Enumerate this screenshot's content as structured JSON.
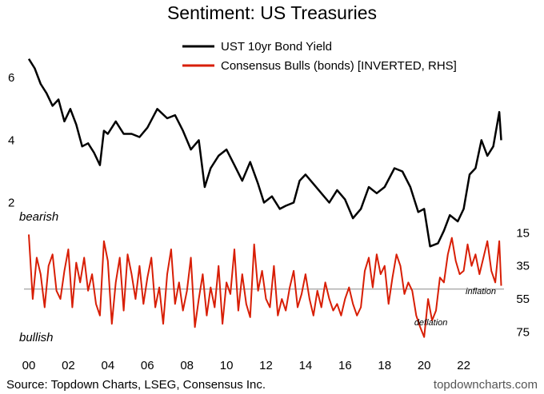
{
  "chart_data": {
    "type": "line",
    "title": "Sentiment: US Treasuries",
    "x_range": [
      2000,
      2024
    ],
    "x_ticks": [
      {
        "value": 2000,
        "label": "00"
      },
      {
        "value": 2002,
        "label": "02"
      },
      {
        "value": 2004,
        "label": "04"
      },
      {
        "value": 2006,
        "label": "06"
      },
      {
        "value": 2008,
        "label": "08"
      },
      {
        "value": 2010,
        "label": "10"
      },
      {
        "value": 2012,
        "label": "12"
      },
      {
        "value": 2014,
        "label": "14"
      },
      {
        "value": 2016,
        "label": "16"
      },
      {
        "value": 2018,
        "label": "18"
      },
      {
        "value": 2020,
        "label": "20"
      },
      {
        "value": 2022,
        "label": "22"
      }
    ],
    "left_axis": {
      "ticks": [
        {
          "value": 2,
          "label": "2"
        },
        {
          "value": 4,
          "label": "4"
        },
        {
          "value": 6,
          "label": "6"
        }
      ],
      "range": [
        1.4,
        6.9
      ]
    },
    "right_axis": {
      "ticks": [
        {
          "value": 15,
          "label": "15"
        },
        {
          "value": 35,
          "label": "35"
        },
        {
          "value": 55,
          "label": "55"
        },
        {
          "value": 75,
          "label": "75"
        }
      ],
      "range": [
        10,
        82
      ],
      "inverted": true
    },
    "reference_line": 49,
    "series": [
      {
        "name": "UST 10yr Bond Yield",
        "color": "#000000",
        "axis": "left",
        "x": [
          2000.0,
          2000.3,
          2000.6,
          2000.9,
          2001.2,
          2001.5,
          2001.8,
          2002.1,
          2002.4,
          2002.7,
          2003.0,
          2003.3,
          2003.6,
          2003.8,
          2004.0,
          2004.4,
          2004.8,
          2005.2,
          2005.6,
          2006.0,
          2006.5,
          2007.0,
          2007.4,
          2007.8,
          2008.2,
          2008.6,
          2008.9,
          2009.2,
          2009.6,
          2010.0,
          2010.4,
          2010.8,
          2011.2,
          2011.6,
          2011.9,
          2012.3,
          2012.7,
          2013.0,
          2013.4,
          2013.7,
          2014.0,
          2014.4,
          2014.8,
          2015.2,
          2015.6,
          2016.0,
          2016.4,
          2016.8,
          2017.2,
          2017.6,
          2018.0,
          2018.5,
          2018.9,
          2019.3,
          2019.7,
          2020.0,
          2020.3,
          2020.7,
          2021.0,
          2021.3,
          2021.7,
          2022.0,
          2022.3,
          2022.6,
          2022.9,
          2023.2,
          2023.5,
          2023.8,
          2023.9
        ],
        "values": [
          6.6,
          6.3,
          5.8,
          5.5,
          5.1,
          5.3,
          4.6,
          5.0,
          4.5,
          3.8,
          3.9,
          3.6,
          3.2,
          4.3,
          4.2,
          4.6,
          4.2,
          4.2,
          4.1,
          4.4,
          5.0,
          4.7,
          4.8,
          4.3,
          3.7,
          4.0,
          2.5,
          3.1,
          3.5,
          3.7,
          3.2,
          2.7,
          3.3,
          2.6,
          2.0,
          2.2,
          1.8,
          1.9,
          2.0,
          2.7,
          2.9,
          2.6,
          2.3,
          2.0,
          2.4,
          2.1,
          1.5,
          1.8,
          2.5,
          2.3,
          2.5,
          3.1,
          3.0,
          2.5,
          1.7,
          1.8,
          0.6,
          0.7,
          1.1,
          1.6,
          1.4,
          1.8,
          2.9,
          3.1,
          4.0,
          3.5,
          3.8,
          4.9,
          4.0
        ]
      },
      {
        "name": "Consensus Bulls (bonds) [INVERTED, RHS]",
        "color": "#d81e05",
        "axis": "right",
        "x": [
          2000.0,
          2000.2,
          2000.4,
          2000.6,
          2000.8,
          2001.0,
          2001.2,
          2001.4,
          2001.6,
          2001.8,
          2002.0,
          2002.2,
          2002.4,
          2002.6,
          2002.8,
          2003.0,
          2003.2,
          2003.4,
          2003.6,
          2003.8,
          2004.0,
          2004.2,
          2004.4,
          2004.6,
          2004.8,
          2005.0,
          2005.2,
          2005.4,
          2005.6,
          2005.8,
          2006.0,
          2006.2,
          2006.4,
          2006.6,
          2006.8,
          2007.0,
          2007.2,
          2007.4,
          2007.6,
          2007.8,
          2008.0,
          2008.2,
          2008.4,
          2008.6,
          2008.8,
          2009.0,
          2009.2,
          2009.4,
          2009.6,
          2009.8,
          2010.0,
          2010.2,
          2010.4,
          2010.6,
          2010.8,
          2011.0,
          2011.2,
          2011.4,
          2011.6,
          2011.8,
          2012.0,
          2012.2,
          2012.4,
          2012.6,
          2012.8,
          2013.0,
          2013.2,
          2013.4,
          2013.6,
          2013.8,
          2014.0,
          2014.2,
          2014.4,
          2014.6,
          2014.8,
          2015.0,
          2015.2,
          2015.4,
          2015.6,
          2015.8,
          2016.0,
          2016.2,
          2016.4,
          2016.6,
          2016.8,
          2017.0,
          2017.2,
          2017.4,
          2017.6,
          2017.8,
          2018.0,
          2018.2,
          2018.4,
          2018.6,
          2018.8,
          2019.0,
          2019.2,
          2019.4,
          2019.6,
          2019.8,
          2020.0,
          2020.2,
          2020.4,
          2020.6,
          2020.8,
          2021.0,
          2021.2,
          2021.4,
          2021.6,
          2021.8,
          2022.0,
          2022.2,
          2022.4,
          2022.6,
          2022.8,
          2023.0,
          2023.2,
          2023.4,
          2023.6,
          2023.8,
          2023.9
        ],
        "values": [
          16,
          55,
          30,
          40,
          60,
          35,
          28,
          50,
          55,
          38,
          25,
          60,
          33,
          45,
          30,
          50,
          40,
          58,
          65,
          20,
          32,
          70,
          45,
          30,
          62,
          28,
          40,
          55,
          35,
          58,
          42,
          30,
          60,
          48,
          70,
          40,
          25,
          58,
          45,
          62,
          50,
          30,
          72,
          55,
          40,
          65,
          48,
          60,
          35,
          70,
          45,
          52,
          25,
          62,
          40,
          58,
          66,
          22,
          50,
          38,
          55,
          60,
          35,
          65,
          55,
          62,
          48,
          38,
          60,
          52,
          40,
          55,
          65,
          50,
          60,
          45,
          55,
          62,
          58,
          65,
          55,
          48,
          58,
          65,
          60,
          38,
          30,
          48,
          28,
          40,
          35,
          58,
          42,
          28,
          35,
          52,
          45,
          50,
          65,
          72,
          78,
          55,
          68,
          62,
          42,
          45,
          28,
          18,
          32,
          40,
          38,
          22,
          35,
          28,
          40,
          30,
          20,
          38,
          45,
          20,
          47
        ],
        "annotations": [
          {
            "text": "inflation",
            "x": 2022.1,
            "y": 52
          },
          {
            "text": "deflation",
            "x": 2019.5,
            "y": 71
          }
        ]
      }
    ],
    "side_labels": {
      "top": "bearish",
      "bottom": "bullish"
    },
    "source": "Source: Topdown Charts, LSEG, Consensus Inc.",
    "brand": "topdowncharts.com"
  }
}
